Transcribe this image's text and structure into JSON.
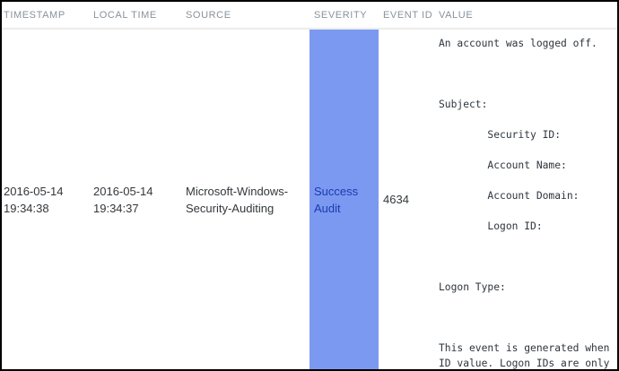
{
  "table": {
    "headers": [
      "TIMESTAMP",
      "LOCAL TIME",
      "SOURCE",
      "SEVERITY",
      "EVENT ID",
      "VALUE"
    ],
    "row": {
      "timestamp": "2016-05-14 19:34:38",
      "local_time": "2016-05-14 19:34:37",
      "source": "Microsoft-Windows-Security-Auditing",
      "severity": "Success Audit",
      "event_id": "4634",
      "value": "An account was logged off.\n\n\n\nSubject:\n\n\tSecurity ID:\n\n\tAccount Name:\n\n\tAccount Domain:\n\n\tLogon ID:\n\n\n\nLogon Type:\n\n\n\nThis event is generated when\nID value. Logon IDs are only"
    }
  },
  "colors": {
    "severity_success_bg": "#7b99f0",
    "severity_success_text": "#1c3bb0",
    "header_text": "#87939c",
    "body_text": "#33373b",
    "mono_text": "#2e353d",
    "separator": "#ececec",
    "border": "#000000",
    "row_bg": "#ffffff"
  }
}
